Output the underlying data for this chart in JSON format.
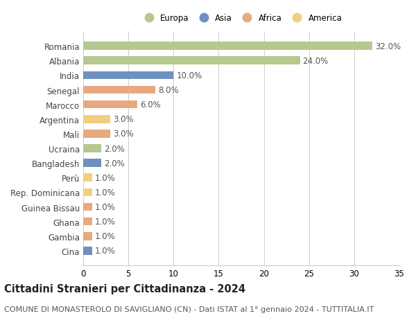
{
  "title": "Cittadini Stranieri per Cittadinanza - 2024",
  "subtitle": "COMUNE DI MONASTEROLO DI SAVIGLIANO (CN) - Dati ISTAT al 1° gennaio 2024 - TUTTITALIA.IT",
  "categories": [
    "Romania",
    "Albania",
    "India",
    "Senegal",
    "Marocco",
    "Argentina",
    "Mali",
    "Ucraina",
    "Bangladesh",
    "Perù",
    "Rep. Dominicana",
    "Guinea Bissau",
    "Ghana",
    "Gambia",
    "Cina"
  ],
  "values": [
    32.0,
    24.0,
    10.0,
    8.0,
    6.0,
    3.0,
    3.0,
    2.0,
    2.0,
    1.0,
    1.0,
    1.0,
    1.0,
    1.0,
    1.0
  ],
  "continents": [
    "Europa",
    "Europa",
    "Asia",
    "Africa",
    "Africa",
    "America",
    "Africa",
    "Europa",
    "Asia",
    "America",
    "America",
    "Africa",
    "Africa",
    "Africa",
    "Asia"
  ],
  "continent_colors": {
    "Europa": "#b5c98e",
    "Asia": "#6f8fbf",
    "Africa": "#e8a97e",
    "America": "#f0d080"
  },
  "legend_order": [
    "Europa",
    "Asia",
    "Africa",
    "America"
  ],
  "xlim": [
    0,
    35
  ],
  "xticks": [
    0,
    5,
    10,
    15,
    20,
    25,
    30,
    35
  ],
  "background_color": "#ffffff",
  "grid_color": "#cccccc",
  "bar_height": 0.55,
  "label_fontsize": 8.5,
  "title_fontsize": 10.5,
  "subtitle_fontsize": 8.0
}
